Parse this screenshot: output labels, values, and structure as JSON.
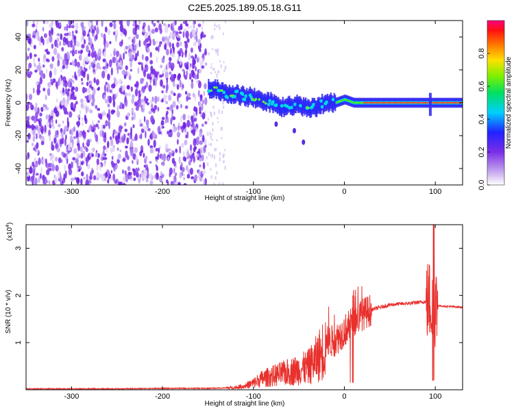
{
  "title": "C2E5.2025.189.05.18.G11",
  "chart_data": [
    {
      "type": "heatmap",
      "name": "spectrogram",
      "xlabel": "Height of straight line (km)",
      "ylabel": "Frequency (Hz)",
      "xlim": [
        -350,
        130
      ],
      "ylim": [
        -50,
        50
      ],
      "xticks": [
        -300,
        -200,
        -100,
        0,
        100
      ],
      "yticks": [
        -40,
        -20,
        0,
        20,
        40
      ],
      "colorbar": {
        "label": "Normalized spectral amplitude",
        "range": [
          0,
          1
        ],
        "ticks": [
          0.0,
          0.2,
          0.4,
          0.6,
          0.8
        ]
      },
      "noise_region_x": [
        -350,
        -152
      ],
      "signal_ridge": [
        {
          "x": -150,
          "y": 8
        },
        {
          "x": -140,
          "y": 8
        },
        {
          "x": -130,
          "y": 6
        },
        {
          "x": -120,
          "y": 5
        },
        {
          "x": -110,
          "y": 4
        },
        {
          "x": -100,
          "y": 3
        },
        {
          "x": -90,
          "y": 1
        },
        {
          "x": -80,
          "y": 0
        },
        {
          "x": -70,
          "y": -3
        },
        {
          "x": -60,
          "y": -2
        },
        {
          "x": -50,
          "y": -1
        },
        {
          "x": -40,
          "y": -4
        },
        {
          "x": -30,
          "y": -2
        },
        {
          "x": -20,
          "y": 0
        },
        {
          "x": -10,
          "y": 0
        },
        {
          "x": 0,
          "y": 2
        },
        {
          "x": 10,
          "y": 0
        },
        {
          "x": 50,
          "y": 0
        },
        {
          "x": 90,
          "y": 0
        },
        {
          "x": 100,
          "y": 0
        },
        {
          "x": 130,
          "y": 0
        }
      ]
    },
    {
      "type": "line",
      "name": "snr",
      "xlabel": "Height of straight line (km)",
      "ylabel": "SNR (10 * v/v)",
      "multiplier": "(x10",
      "multiplier_exp": "4",
      "multiplier_close": ")",
      "xlim": [
        -350,
        130
      ],
      "ylim": [
        0,
        3.5
      ],
      "xticks": [
        -300,
        -200,
        -100,
        0,
        100
      ],
      "yticks": [
        1,
        2,
        3
      ],
      "color": "#e8302c",
      "series": [
        {
          "x": [
            -350,
            -300,
            -250,
            -200,
            -150,
            -130,
            -120,
            -110,
            -100,
            -90,
            -80,
            -70,
            -60,
            -50,
            -40,
            -30,
            -20,
            -10,
            0,
            10,
            20,
            30,
            40,
            50,
            60,
            70,
            80,
            90,
            95,
            98,
            100,
            105,
            110,
            130
          ],
          "y": [
            0.02,
            0.02,
            0.02,
            0.03,
            0.03,
            0.04,
            0.05,
            0.08,
            0.15,
            0.25,
            0.3,
            0.35,
            0.4,
            0.45,
            0.5,
            0.7,
            1.0,
            1.05,
            1.25,
            1.45,
            1.6,
            1.7,
            1.75,
            1.8,
            1.82,
            1.83,
            1.85,
            1.87,
            1.9,
            1.5,
            1.8,
            1.78,
            1.77,
            1.75
          ]
        }
      ]
    }
  ]
}
